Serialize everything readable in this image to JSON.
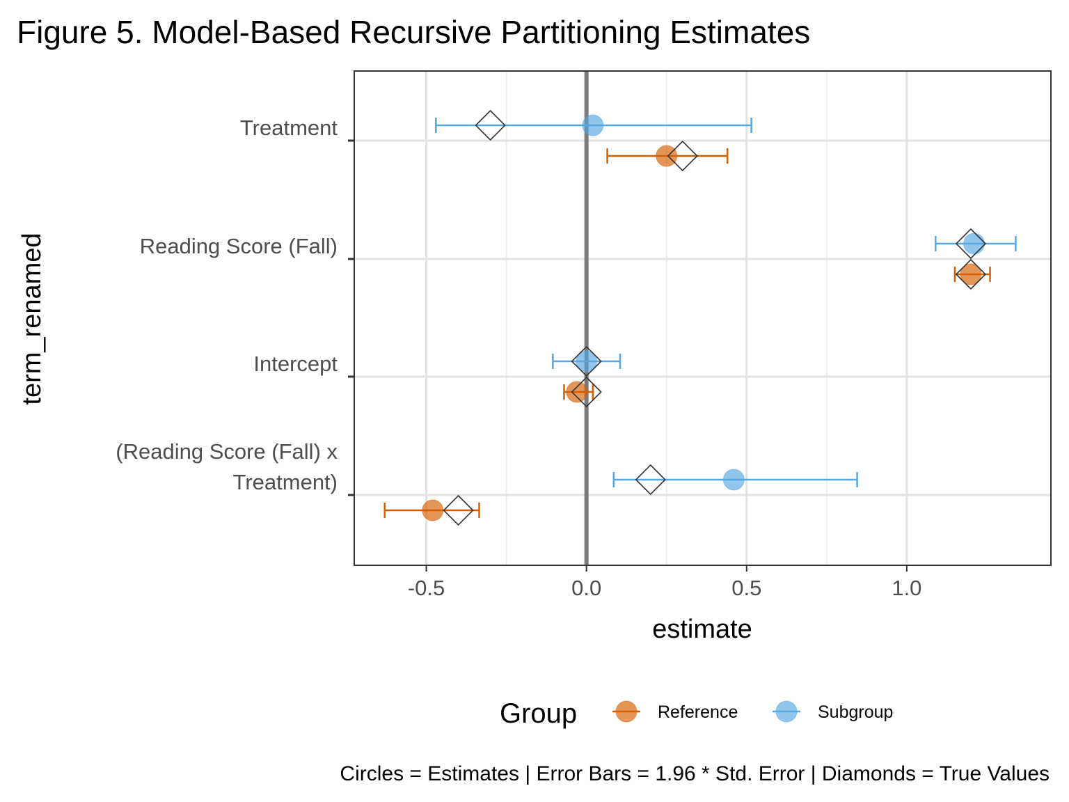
{
  "chart_data": {
    "type": "scatter",
    "title": "Figure 5. Model-Based Recursive Partitioning Estimates",
    "xlabel": "estimate",
    "ylabel": "term_renamed",
    "xlim": [
      -0.725,
      1.45
    ],
    "x_ticks": [
      -0.5,
      0.0,
      0.5,
      1.0
    ],
    "x_tick_labels": [
      "-0.5",
      "0.0",
      "0.5",
      "1.0"
    ],
    "categories": [
      "Treatment",
      "Reading Score (Fall)",
      "Intercept",
      "(Reading Score (Fall) x\nTreatment)"
    ],
    "reference_line_x": 0,
    "grid": true,
    "legend": {
      "title": "Group",
      "position": "bottom",
      "entries": [
        "Reference",
        "Subgroup"
      ]
    },
    "caption": "Circles = Estimates | Error Bars = 1.96 * Std. Error | Diamonds  = True Values",
    "series": [
      {
        "name": "Reference",
        "color": "#D55E00",
        "fill": "#E08A57",
        "estimates": [
          0.25,
          1.2,
          -0.03,
          -0.48
        ],
        "lower": [
          0.065,
          1.15,
          -0.07,
          -0.63
        ],
        "upper": [
          0.44,
          1.26,
          0.02,
          -0.335
        ],
        "true_values": [
          0.3,
          1.2,
          0.0,
          -0.4
        ]
      },
      {
        "name": "Subgroup",
        "color": "#56A6E0",
        "fill": "#85C2EE",
        "estimates": [
          0.02,
          1.21,
          0.0,
          0.46
        ],
        "lower": [
          -0.47,
          1.09,
          -0.105,
          0.085
        ],
        "upper": [
          0.515,
          1.34,
          0.105,
          0.845
        ],
        "true_values": [
          -0.3,
          1.2,
          0.0,
          0.2
        ]
      }
    ]
  }
}
